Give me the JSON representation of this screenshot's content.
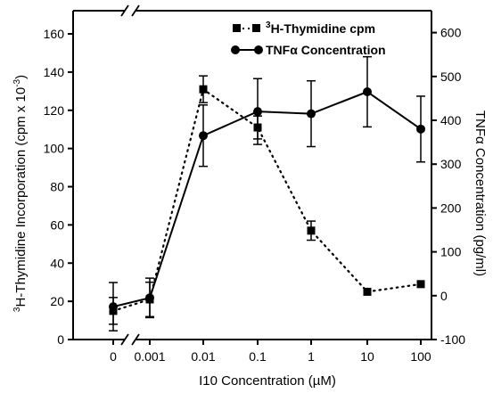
{
  "chart_data": {
    "type": "line",
    "x_categories": [
      "0",
      "0.001",
      "0.01",
      "0.1",
      "1",
      "10",
      "100"
    ],
    "xlabel": "I10 Concentration (µM)",
    "ylabel_left": {
      "sup": "3",
      "text": "H-Thymidine Incorporation (cpm x 10",
      "sup2": "-3",
      "close": ")"
    },
    "ylabel_right": "TNFα Concentration (pg/ml)",
    "left_axis": {
      "range": [
        0,
        160
      ],
      "ticks": [
        0,
        20,
        40,
        60,
        80,
        100,
        120,
        140,
        160
      ]
    },
    "right_axis": {
      "range": [
        -100,
        650
      ],
      "ticks": [
        -100,
        0,
        100,
        200,
        300,
        400,
        500,
        600
      ]
    },
    "axis_break": true,
    "grid": false,
    "legend_position": "top-right",
    "series": [
      {
        "name_sup": "3",
        "name_text": "H-Thymidine cpm",
        "axis": "left",
        "marker": "square",
        "line": "dotted",
        "values": [
          15,
          21,
          131,
          111,
          57,
          25,
          29
        ],
        "errors": [
          7,
          9,
          7,
          6,
          5,
          0,
          0
        ]
      },
      {
        "name": "TNFα Concentration",
        "axis": "right",
        "marker": "circle",
        "line": "solid",
        "values": [
          -25,
          -5,
          365,
          420,
          415,
          465,
          380
        ],
        "errors": [
          55,
          45,
          70,
          75,
          75,
          80,
          75
        ]
      }
    ]
  }
}
